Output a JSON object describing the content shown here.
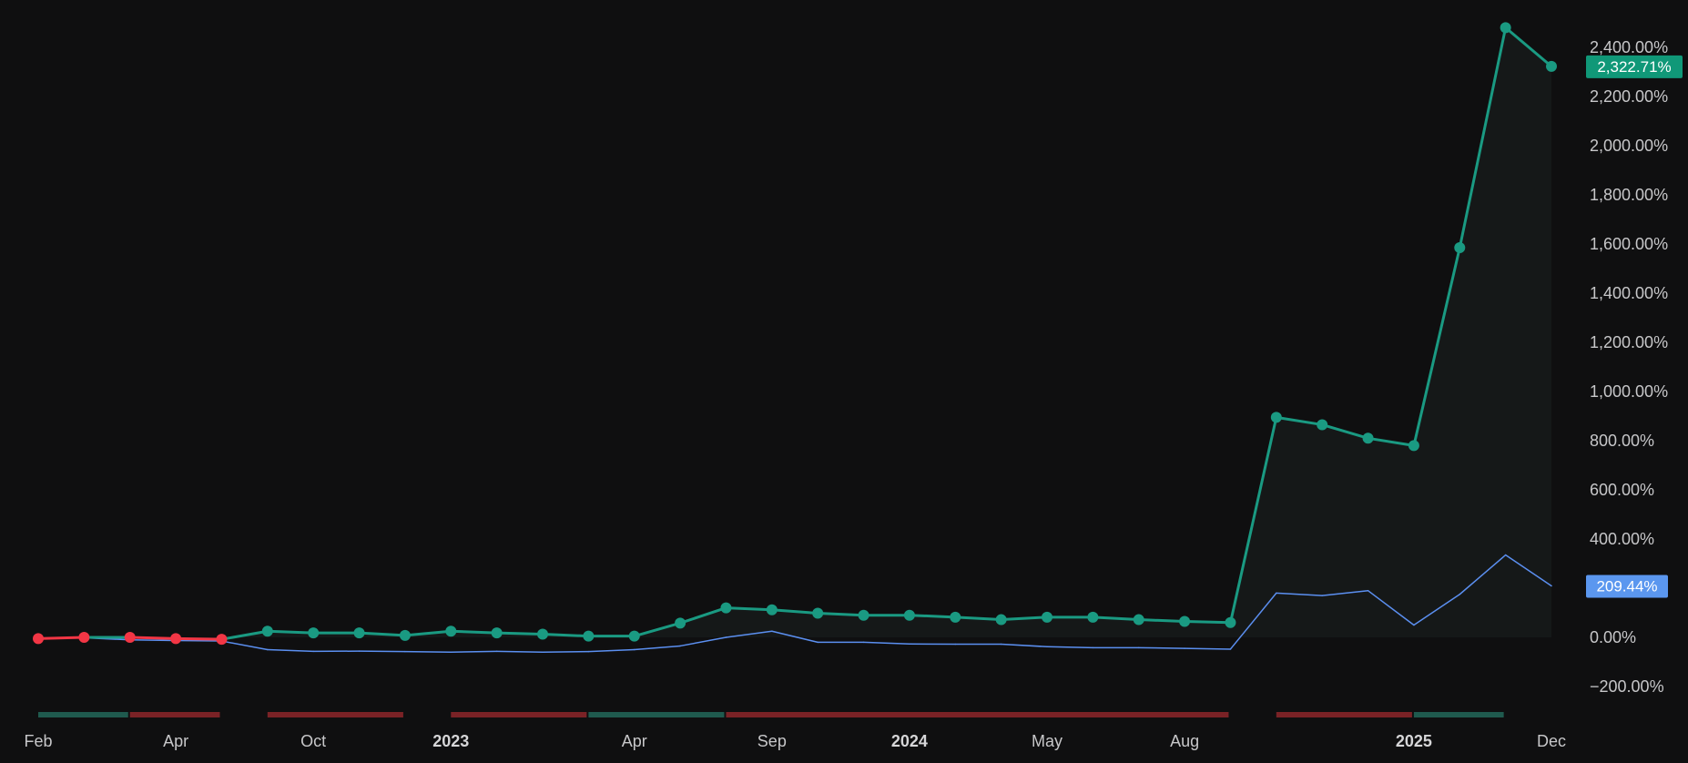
{
  "chart_data": {
    "type": "line",
    "ylim": [
      -300,
      2500
    ],
    "y_ticks": [
      {
        "value": 2400,
        "label": "2,400.00%"
      },
      {
        "value": 2200,
        "label": "2,200.00%"
      },
      {
        "value": 2000,
        "label": "2,000.00%"
      },
      {
        "value": 1800,
        "label": "1,800.00%"
      },
      {
        "value": 1600,
        "label": "1,600.00%"
      },
      {
        "value": 1400,
        "label": "1,400.00%"
      },
      {
        "value": 1200,
        "label": "1,200.00%"
      },
      {
        "value": 1000,
        "label": "1,000.00%"
      },
      {
        "value": 800,
        "label": "800.00%"
      },
      {
        "value": 600,
        "label": "600.00%"
      },
      {
        "value": 400,
        "label": "400.00%"
      },
      {
        "value": 0,
        "label": "0.00%"
      },
      {
        "value": -200,
        "label": "−200.00%"
      }
    ],
    "x_ticks": [
      {
        "index": 0,
        "label": "Feb",
        "bold": false
      },
      {
        "index": 3,
        "label": "Apr",
        "bold": false
      },
      {
        "index": 6,
        "label": "Oct",
        "bold": false
      },
      {
        "index": 9,
        "label": "2023",
        "bold": true
      },
      {
        "index": 13,
        "label": "Apr",
        "bold": false
      },
      {
        "index": 16,
        "label": "Sep",
        "bold": false
      },
      {
        "index": 19,
        "label": "2024",
        "bold": true
      },
      {
        "index": 22,
        "label": "May",
        "bold": false
      },
      {
        "index": 25,
        "label": "Aug",
        "bold": false
      },
      {
        "index": 30,
        "label": "2025",
        "bold": true
      },
      {
        "index": 33,
        "label": "Dec",
        "bold": false
      }
    ],
    "n_points": 34,
    "series": [
      {
        "values": [
          -5,
          0,
          0,
          -5,
          -8,
          25,
          18,
          18,
          8,
          25,
          18,
          13,
          5,
          5,
          58,
          120,
          112,
          98,
          90,
          90,
          82,
          72,
          82,
          82,
          72,
          65,
          60,
          895,
          865,
          810,
          780,
          1585,
          2480,
          2322.71
        ],
        "color": "#1a9a82",
        "negative_color": "#f23645",
        "last_label": "2,322.71%",
        "markers": true,
        "fill": true
      },
      {
        "values": [
          -3,
          -2,
          -10,
          -13,
          -15,
          -50,
          -57,
          -56,
          -58,
          -60,
          -57,
          -60,
          -58,
          -50,
          -35,
          0,
          25,
          -20,
          -20,
          -27,
          -28,
          -28,
          -38,
          -42,
          -42,
          -45,
          -48,
          180,
          170,
          190,
          50,
          175,
          335,
          209.44
        ],
        "color": "#5b8ff0",
        "last_label": "209.44%",
        "markers": false,
        "fill": false
      }
    ],
    "bands": [
      {
        "start": 0,
        "end": 2,
        "color": "#1f5a4e"
      },
      {
        "start": 2,
        "end": 4,
        "color": "#7a2226"
      },
      {
        "start": 5,
        "end": 8,
        "color": "#7a2226"
      },
      {
        "start": 9,
        "end": 12,
        "color": "#7a2226"
      },
      {
        "start": 12,
        "end": 15,
        "color": "#1f5a4e"
      },
      {
        "start": 15,
        "end": 26,
        "color": "#7a2226"
      },
      {
        "start": 27,
        "end": 30,
        "color": "#7a2226"
      },
      {
        "start": 30,
        "end": 32,
        "color": "#1f5a4e"
      }
    ]
  },
  "colors": {
    "background": "#0f0f10",
    "tick_text": "#c7c7c9"
  }
}
